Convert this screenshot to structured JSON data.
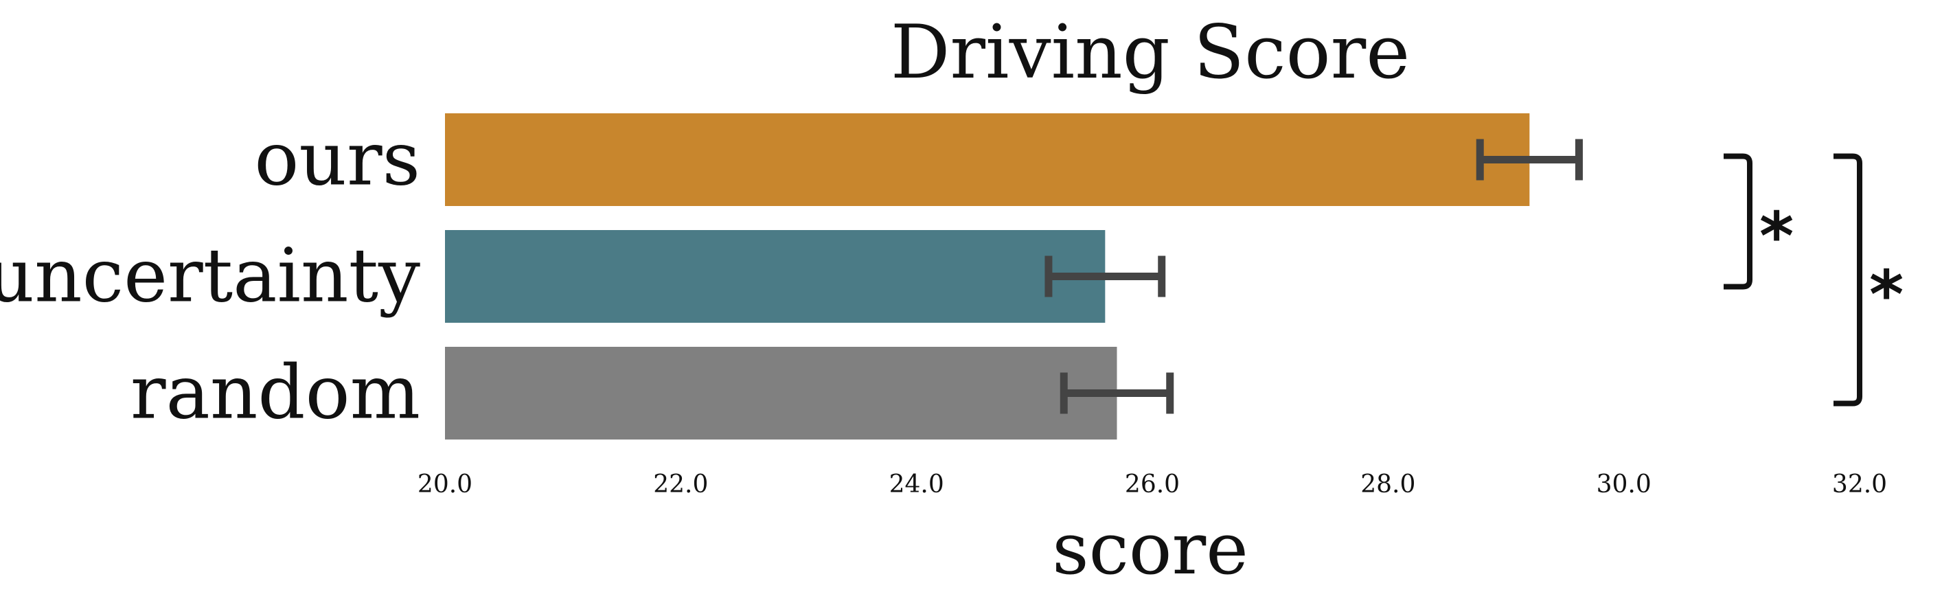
{
  "chart_data": {
    "type": "bar",
    "orientation": "horizontal",
    "title": "Driving Score",
    "xlabel": "score",
    "ylabel": "",
    "categories": [
      "ours",
      "uncertainty",
      "random"
    ],
    "values": [
      29.2,
      25.6,
      25.7
    ],
    "errors": [
      0.42,
      0.48,
      0.45
    ],
    "colors": [
      "#C8862D",
      "#4B7B86",
      "#808080"
    ],
    "xlim": [
      20.0,
      32.0
    ],
    "xticks": [
      "20.0",
      "22.0",
      "24.0",
      "26.0",
      "28.0",
      "30.0",
      "32.0"
    ],
    "grid": false,
    "significance": [
      {
        "from": "ours",
        "to": "uncertainty",
        "label": "*"
      },
      {
        "from": "ours",
        "to": "random",
        "label": "*"
      }
    ],
    "error_bar_color": "#444444"
  }
}
